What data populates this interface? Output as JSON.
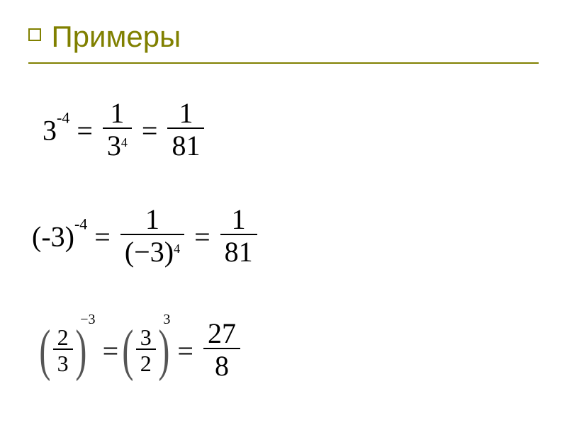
{
  "title": "Примеры",
  "colors": {
    "accent": "#808000",
    "text": "#000000",
    "bg": "#ffffff",
    "paren": "#555555"
  },
  "row1": {
    "base1": "3",
    "exp1": "-4",
    "eq1": "=",
    "frac1_num": "1",
    "frac1_den_base": "3",
    "frac1_den_exp": "4",
    "eq2": "=",
    "frac2_num": "1",
    "frac2_den": "81"
  },
  "row2": {
    "base1": "(-3)",
    "exp1": "-4",
    "eq1": "=",
    "frac1_num": "1",
    "frac1_den_base": "(−3)",
    "frac1_den_exp": "4",
    "eq2": "=",
    "frac2_num": "1",
    "frac2_den": "81"
  },
  "row3": {
    "paren_l": "(",
    "paren_r": ")",
    "inner1_num": "2",
    "inner1_den": "3",
    "exp1": "−3",
    "eq1": "=",
    "inner2_num": "3",
    "inner2_den": "2",
    "exp2": "3",
    "eq2": "=",
    "res_num": "27",
    "res_den": "8"
  }
}
